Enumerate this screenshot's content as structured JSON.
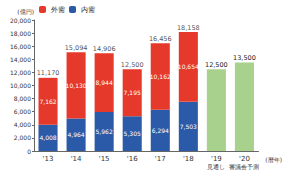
{
  "chart_data": {
    "type": "bar",
    "stacked": true,
    "data_labels": true,
    "grid": false,
    "legend": "upper left",
    "y_label": "(億円)",
    "x_label": "(暦年)",
    "categories": [
      "'13",
      "'14",
      "'15",
      "'16",
      "'17",
      "'18",
      "'19",
      "'20"
    ],
    "category_notes": [
      null,
      null,
      null,
      null,
      null,
      null,
      "見通し",
      "審議会予測"
    ],
    "ylim": [
      0,
      20000
    ],
    "yticks": [
      0,
      {
        "value": 2000,
        "label": "2,000"
      },
      {
        "value": 4000,
        "label": "4,000"
      },
      {
        "value": 6000,
        "label": "6,000"
      },
      {
        "value": 8000,
        "label": "8,000"
      },
      {
        "value": 10000,
        "label": "10,000"
      },
      {
        "value": 12000,
        "label": "12,000"
      },
      {
        "value": 14000,
        "label": "14,000"
      },
      {
        "value": 16000,
        "label": "16,000"
      },
      {
        "value": 18000,
        "label": "18,000"
      },
      {
        "value": 20000,
        "label": "20,000"
      }
    ],
    "series": [
      {
        "name": "外需",
        "color": "#e5392c",
        "values": [
          7162,
          10130,
          8944,
          7195,
          10162,
          10654,
          null,
          null
        ],
        "value_labels": [
          "7,162",
          "10,130",
          "8,944",
          "7,195",
          "10,162",
          "10,654",
          null,
          null
        ]
      },
      {
        "name": "内需",
        "color": "#2b5ba8",
        "values": [
          4008,
          4964,
          5962,
          5305,
          6294,
          7503,
          null,
          null
        ],
        "value_labels": [
          "4,008",
          "4,964",
          "5,962",
          "5,305",
          "6,294",
          "7,503",
          null,
          null
        ]
      }
    ],
    "forecast": {
      "color": "#a9d18e",
      "values": [
        null,
        null,
        null,
        null,
        null,
        null,
        12500,
        13500
      ],
      "value_labels": [
        null,
        null,
        null,
        null,
        null,
        null,
        "12,500",
        "13,500"
      ]
    },
    "totals": [
      11170,
      15094,
      14906,
      12500,
      16456,
      18158,
      null,
      null
    ],
    "total_labels": [
      "11,170",
      "15,094",
      "14,906",
      "12,500",
      "16,456",
      "18,158",
      null,
      null
    ]
  }
}
